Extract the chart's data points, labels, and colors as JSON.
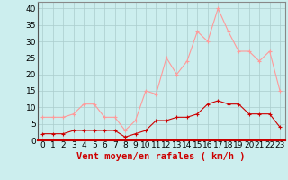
{
  "x": [
    0,
    1,
    2,
    3,
    4,
    5,
    6,
    7,
    8,
    9,
    10,
    11,
    12,
    13,
    14,
    15,
    16,
    17,
    18,
    19,
    20,
    21,
    22,
    23
  ],
  "wind_mean": [
    2,
    2,
    2,
    3,
    3,
    3,
    3,
    3,
    1,
    2,
    3,
    6,
    6,
    7,
    7,
    8,
    11,
    12,
    11,
    11,
    8,
    8,
    8,
    4
  ],
  "wind_gust": [
    7,
    7,
    7,
    8,
    11,
    11,
    7,
    7,
    3,
    6,
    15,
    14,
    25,
    20,
    24,
    33,
    30,
    40,
    33,
    27,
    27,
    24,
    27,
    15
  ],
  "mean_color": "#cc0000",
  "gust_color": "#ff9999",
  "bg_color": "#cceeee",
  "grid_color": "#aacccc",
  "xlabel": "Vent moyen/en rafales ( km/h )",
  "xlabel_color": "#cc0000",
  "ylabel_values": [
    0,
    5,
    10,
    15,
    20,
    25,
    30,
    35,
    40
  ],
  "ylim": [
    0,
    42
  ],
  "xlim": [
    -0.5,
    23.5
  ],
  "axis_fontsize": 6.5,
  "label_fontsize": 7.5
}
